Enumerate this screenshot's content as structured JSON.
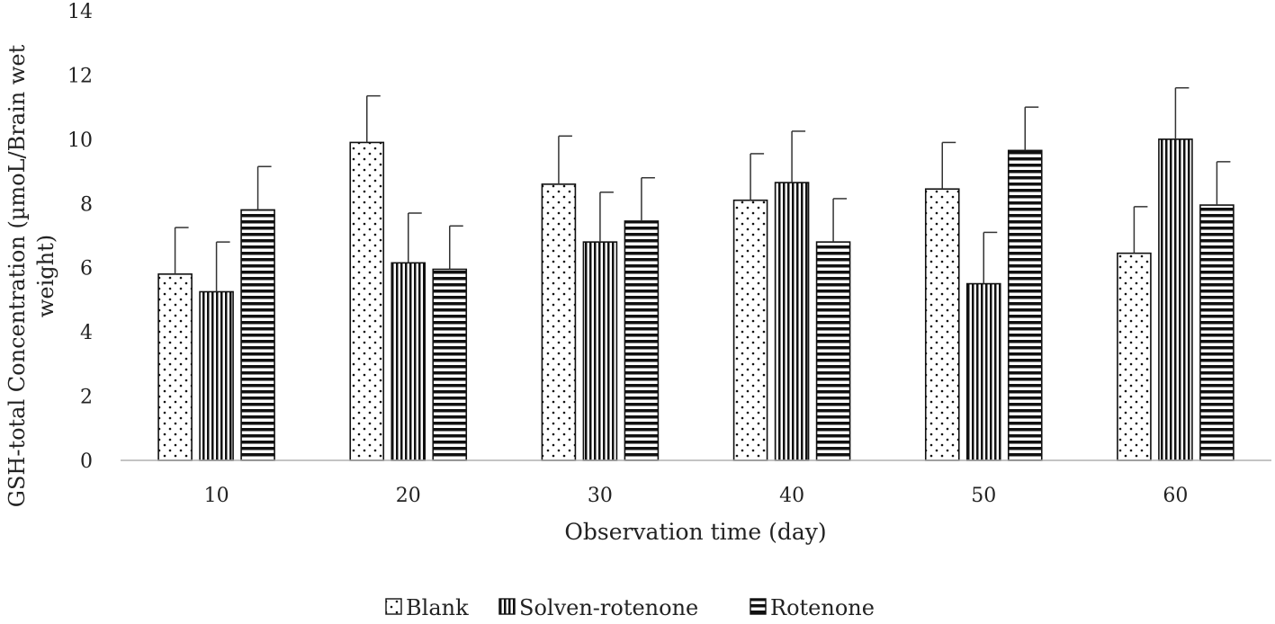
{
  "chart_data": {
    "type": "bar",
    "title": "",
    "xlabel": "Observation time (day)",
    "ylabel_lines": [
      "GSH-total Concentration (µmoL/Brain wet",
      "weight)"
    ],
    "categories": [
      "10",
      "20",
      "30",
      "40",
      "50",
      "60"
    ],
    "ylim": [
      0,
      14
    ],
    "yticks": [
      "0",
      "2",
      "4",
      "6",
      "8",
      "10",
      "12",
      "14"
    ],
    "grid": false,
    "legend_position": "bottom",
    "series": [
      {
        "name": "Blank",
        "pattern": "dots",
        "values": [
          5.8,
          9.9,
          8.6,
          8.1,
          8.45,
          6.45
        ],
        "errors": [
          1.45,
          1.45,
          1.5,
          1.45,
          1.45,
          1.45
        ]
      },
      {
        "name": "Solven-rotenone",
        "pattern": "vertical-lines",
        "values": [
          5.25,
          6.15,
          6.8,
          8.65,
          5.5,
          10.0
        ],
        "errors": [
          1.55,
          1.55,
          1.55,
          1.6,
          1.6,
          1.6
        ]
      },
      {
        "name": "Rotenone",
        "pattern": "horizontal-lines",
        "values": [
          7.8,
          5.95,
          7.45,
          6.8,
          9.65,
          7.95
        ],
        "errors": [
          1.35,
          1.35,
          1.35,
          1.35,
          1.35,
          1.35
        ]
      }
    ]
  }
}
